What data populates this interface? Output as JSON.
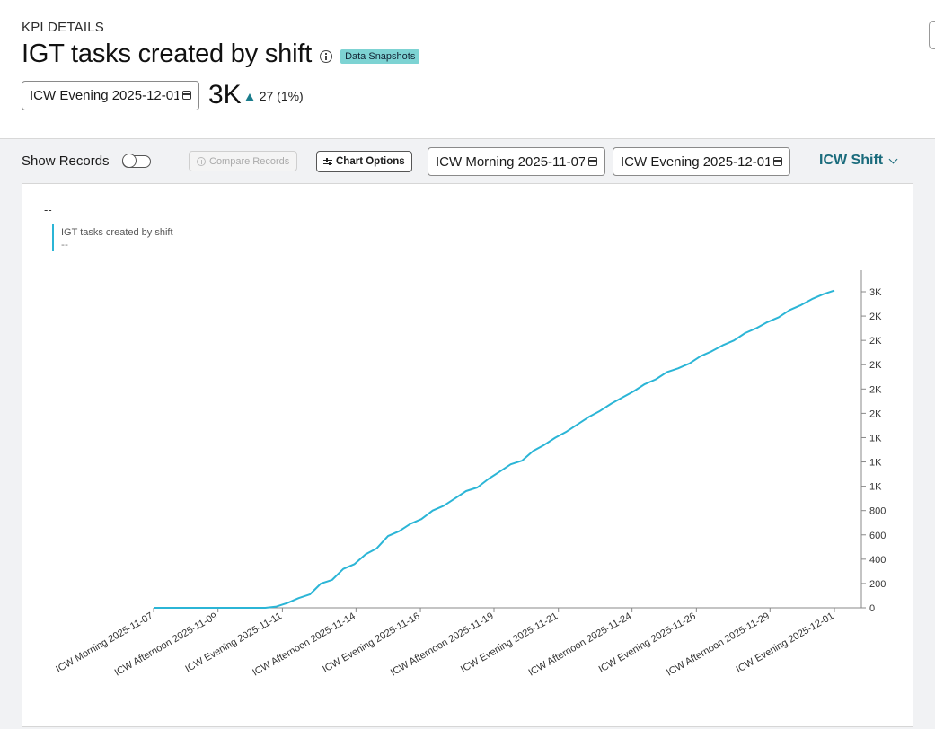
{
  "header": {
    "section_label": "KPI DETAILS",
    "title": "IGT tasks created by shift",
    "badge": "Data Snapshots",
    "snapshot_select": "ICW Evening 2025-12-01",
    "kpi_value": "3K",
    "kpi_delta": "27 (1%)"
  },
  "toolbar": {
    "show_records_label": "Show Records",
    "show_records_on": false,
    "compare_label": "Compare Records",
    "chart_options_label": "Chart Options",
    "date_from": "ICW Morning 2025-11-07",
    "date_to": "ICW Evening 2025-12-01",
    "group_by": "ICW Shift"
  },
  "colors": {
    "line": "#2bb5d6",
    "accent": "#1a6b7c",
    "badge": "#7dd3d3"
  },
  "chart_data": {
    "type": "line",
    "title": "--",
    "legend": {
      "name": "IGT tasks created by shift",
      "sub": "--",
      "placement": "top-left"
    },
    "y_axis": {
      "position": "right",
      "ticks": [
        0,
        200,
        400,
        600,
        800,
        1000,
        1200,
        1400,
        1600,
        1800,
        2000,
        2200,
        2400,
        2600
      ],
      "tick_labels": [
        "0",
        "200",
        "400",
        "600",
        "800",
        "1K",
        "1K",
        "1K",
        "2K",
        "2K",
        "2K",
        "2K",
        "2K",
        "3K"
      ],
      "range": [
        0,
        2600
      ]
    },
    "x_tick_labels": [
      "ICW Morning 2025-11-07",
      "ICW Afternoon 2025-11-09",
      "ICW Evening 2025-11-11",
      "ICW Afternoon 2025-11-14",
      "ICW Evening 2025-11-16",
      "ICW Afternoon 2025-11-19",
      "ICW Evening 2025-11-21",
      "ICW Afternoon 2025-11-24",
      "ICW Evening 2025-11-26",
      "ICW Afternoon 2025-11-29",
      "ICW Evening 2025-12-01"
    ],
    "x_tick_index": [
      0,
      7,
      14,
      22,
      29,
      37,
      44,
      52,
      59,
      67,
      74
    ],
    "series": [
      {
        "name": "IGT tasks created by shift",
        "values": [
          0,
          0,
          0,
          0,
          0,
          0,
          0,
          0,
          0,
          0,
          0,
          10,
          40,
          80,
          110,
          200,
          230,
          320,
          360,
          440,
          490,
          590,
          630,
          690,
          730,
          800,
          840,
          900,
          960,
          990,
          1060,
          1120,
          1180,
          1210,
          1290,
          1340,
          1400,
          1450,
          1510,
          1570,
          1620,
          1680,
          1730,
          1780,
          1840,
          1880,
          1940,
          1970,
          2010,
          2070,
          2110,
          2160,
          2200,
          2260,
          2300,
          2350,
          2390,
          2450,
          2490,
          2540,
          2580,
          2610
        ]
      }
    ]
  }
}
